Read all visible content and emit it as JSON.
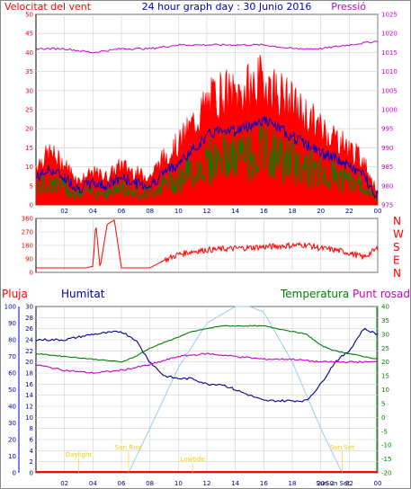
{
  "header": {
    "left": "Velocitat del vent",
    "center": "24 hour graph day : 30 Junio 2016",
    "right": "Pressió"
  },
  "wind_panel": {
    "y_ticks": [
      "0",
      "5",
      "10",
      "15",
      "20",
      "25",
      "30",
      "35",
      "40",
      "45",
      "50"
    ],
    "pressure_ticks": [
      "975",
      "980",
      "985",
      "990",
      "995",
      "1000",
      "1005",
      "1010",
      "1015",
      "1020",
      "1025"
    ]
  },
  "dir_panel": {
    "deg_ticks": [
      "0",
      "90",
      "180",
      "270",
      "360"
    ],
    "compass": [
      "N",
      "W",
      "S",
      "E",
      "N"
    ]
  },
  "bottom_header": {
    "rain": "Pluja",
    "humidity": "Humitat",
    "temperature": "Temperatura",
    "dewpoint": "Punt rosada"
  },
  "bottom_panel": {
    "rain_ticks": [
      "0",
      "10",
      "20",
      "30",
      "40",
      "50",
      "60",
      "70",
      "80",
      "90",
      "100"
    ],
    "hum_ticks": [
      "0",
      "2",
      "4",
      "6",
      "8",
      "10",
      "12",
      "14",
      "16",
      "18",
      "20",
      "22",
      "24",
      "26",
      "28",
      "30"
    ],
    "temp_ticks": [
      "-20",
      "-15",
      "-10",
      "-5",
      "0",
      "5",
      "10",
      "15",
      "20",
      "25",
      "30",
      "35",
      "40"
    ],
    "events": {
      "daylight": "Daylight",
      "sunrise": "Sun Rise",
      "lowtide": "Lowtide",
      "sunset": "Sun Set",
      "sun2": "Sun 2"
    }
  },
  "x_ticks": [
    "02",
    "04",
    "06",
    "08",
    "10",
    "12",
    "14",
    "16",
    "18",
    "20",
    "22",
    "00"
  ],
  "colors": {
    "wind_gust": "#ff0000",
    "wind_avg": "#0000cc",
    "wind_speed": "#008000",
    "pressure": "#cc00cc",
    "direction": "#ff0000",
    "humidity": "#000099",
    "temperature": "#008000",
    "dewpoint": "#cc00cc",
    "solar": "#99ccee",
    "rain": "#ff0000",
    "event_text": "#ffcc00"
  },
  "chart_data": [
    {
      "type": "line",
      "title": "24 hour graph day : 30 Junio 2016",
      "xlabel": "",
      "x_range": [
        0,
        24
      ],
      "ylim": [
        0,
        50
      ],
      "y2lim": [
        975,
        1025
      ],
      "series": [
        {
          "name": "Velocitat del vent",
          "x": [
            0,
            1,
            2,
            3,
            4,
            5,
            6,
            7,
            8,
            9,
            10,
            11,
            12,
            13,
            14,
            15,
            16,
            17,
            18,
            19,
            20,
            21,
            22,
            23,
            24
          ],
          "values": [
            10,
            13,
            10,
            6,
            8,
            7,
            10,
            8,
            7,
            12,
            15,
            20,
            25,
            28,
            27,
            29,
            31,
            28,
            25,
            22,
            19,
            17,
            14,
            11,
            3
          ]
        },
        {
          "name": "Pressió",
          "x": [
            0,
            2,
            4,
            6,
            8,
            10,
            12,
            14,
            16,
            18,
            20,
            22,
            24
          ],
          "values": [
            1016,
            1016,
            1015,
            1016,
            1016,
            1017,
            1017,
            1017,
            1017,
            1016,
            1016,
            1017,
            1018
          ]
        }
      ]
    },
    {
      "type": "line",
      "ylim": [
        0,
        360
      ],
      "series": [
        {
          "name": "direction",
          "x": [
            0,
            1,
            2,
            3,
            3.5,
            4,
            4.2,
            4.5,
            5,
            5.5,
            6,
            7,
            8,
            9,
            10,
            11,
            12,
            13,
            14,
            15,
            16,
            17,
            18,
            19,
            20,
            21,
            22,
            23,
            24
          ],
          "values": [
            30,
            30,
            30,
            30,
            30,
            40,
            330,
            30,
            320,
            350,
            30,
            30,
            30,
            80,
            120,
            140,
            150,
            155,
            160,
            165,
            170,
            175,
            180,
            185,
            160,
            150,
            130,
            100,
            160
          ]
        }
      ]
    },
    {
      "type": "line",
      "ylim": [
        0,
        30
      ],
      "y2lim": [
        -20,
        40
      ],
      "series": [
        {
          "name": "Humitat",
          "x": [
            0,
            2,
            4,
            6,
            7,
            8,
            9,
            10,
            11,
            12,
            13,
            14,
            15,
            16,
            17,
            18,
            19,
            20,
            21,
            22,
            23,
            24
          ],
          "values": [
            24,
            24,
            25,
            25.5,
            24,
            20,
            17.5,
            17,
            17,
            16,
            16,
            15,
            14,
            13,
            13,
            13,
            13,
            16,
            20,
            22,
            26,
            25
          ]
        },
        {
          "name": "Temperatura",
          "x": [
            0,
            2,
            4,
            6,
            7,
            8,
            9,
            10,
            11,
            12,
            13,
            14,
            15,
            16,
            17,
            18,
            19,
            20,
            21,
            22,
            23,
            24
          ],
          "values": [
            23,
            22,
            21,
            20,
            22,
            25,
            27,
            29,
            31,
            32,
            33,
            33,
            33,
            33,
            32,
            31,
            30,
            26,
            24,
            23,
            22,
            21
          ]
        },
        {
          "name": "Punt rosada",
          "x": [
            0,
            2,
            4,
            6,
            8,
            10,
            12,
            14,
            16,
            18,
            20,
            22,
            24
          ],
          "values": [
            19,
            17,
            16,
            17,
            19,
            22,
            23,
            22,
            21,
            21,
            20,
            20,
            20
          ]
        },
        {
          "name": "Pluja",
          "x": [
            0,
            24
          ],
          "values": [
            0,
            0
          ]
        },
        {
          "name": "solar",
          "x": [
            6.5,
            8,
            10,
            12,
            14,
            15,
            16,
            18,
            20,
            21.5
          ],
          "values": [
            0,
            8,
            19,
            27,
            30,
            30,
            29,
            20,
            8,
            0
          ]
        }
      ]
    }
  ]
}
